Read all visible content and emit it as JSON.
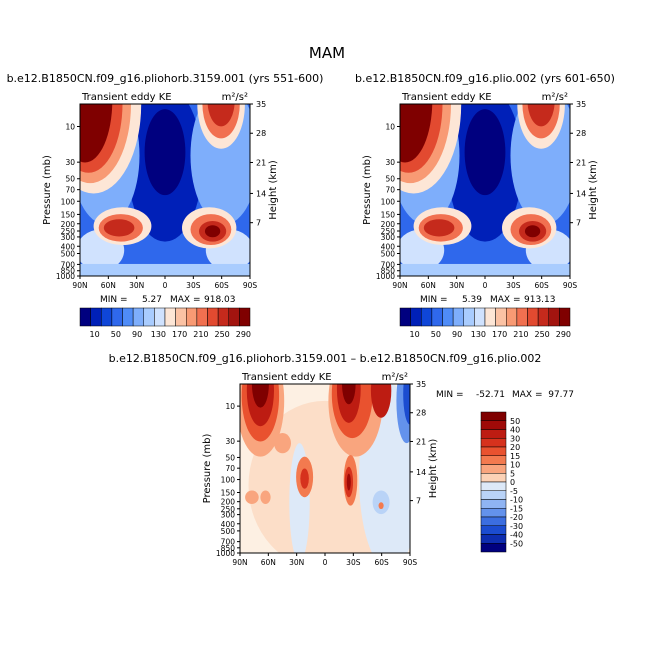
{
  "figure_title": "MAM",
  "panels": [
    {
      "title": "b.e12.B1850CN.f09_g16.pliohorb.3159.001 (yrs 551-600)",
      "var_label": "Transient eddy KE",
      "units": "m²/s²",
      "stats": {
        "min_label": "MIN =",
        "min": "5.27",
        "max_label": "MAX =",
        "max": "918.03"
      }
    },
    {
      "title": "b.e12.B1850CN.f09_g16.plio.002 (yrs 601-650)",
      "var_label": "Transient eddy KE",
      "units": "m²/s²",
      "stats": {
        "min_label": "MIN =",
        "min": "5.39",
        "max_label": "MAX =",
        "max": "913.13"
      }
    },
    {
      "title": "b.e12.B1850CN.f09_g16.pliohorb.3159.001 – b.e12.B1850CN.f09_g16.plio.002",
      "var_label": "Transient eddy KE",
      "units": "m²/s²",
      "stats": {
        "min_label": "MIN =",
        "min": "-52.71",
        "max_label": "MAX =",
        "max": "97.77"
      }
    }
  ],
  "chart_data": [
    {
      "type": "heatmap",
      "xlabel": "",
      "ylabel": "Pressure (mb)",
      "ylabel_right": "Height (km)",
      "x_ticks": [
        "90N",
        "60N",
        "30N",
        "0",
        "30S",
        "60S",
        "90S"
      ],
      "y_ticks": [
        "10",
        "30",
        "50",
        "70",
        "100",
        "150",
        "200",
        "250",
        "300",
        "400",
        "500",
        "700",
        "850",
        "1000"
      ],
      "y_right_ticks": [
        "35",
        "28",
        "21",
        "14",
        "7"
      ],
      "colorbar": {
        "levels": [
          "10",
          "50",
          "90",
          "130",
          "170",
          "210",
          "250",
          "290"
        ],
        "orientation": "horizontal"
      },
      "features": [
        {
          "lat": -80,
          "p": 10,
          "value": 600
        },
        {
          "lat": 60,
          "p": 10,
          "value": 300
        },
        {
          "lat": 45,
          "p": 250,
          "value": 300
        },
        {
          "lat": -45,
          "p": 300,
          "value": 300
        },
        {
          "lat": 0,
          "p": 40,
          "value": 5
        }
      ]
    },
    {
      "type": "heatmap",
      "xlabel": "",
      "ylabel": "Pressure (mb)",
      "ylabel_right": "Height (km)",
      "x_ticks": [
        "90N",
        "60N",
        "30N",
        "0",
        "30S",
        "60S",
        "90S"
      ],
      "y_ticks": [
        "10",
        "30",
        "50",
        "70",
        "100",
        "150",
        "200",
        "250",
        "300",
        "400",
        "500",
        "700",
        "850",
        "1000"
      ],
      "y_right_ticks": [
        "35",
        "28",
        "21",
        "14",
        "7"
      ],
      "colorbar": {
        "levels": [
          "10",
          "50",
          "90",
          "130",
          "170",
          "210",
          "250",
          "290"
        ],
        "orientation": "horizontal"
      },
      "features": [
        {
          "lat": -80,
          "p": 10,
          "value": 600
        },
        {
          "lat": 60,
          "p": 10,
          "value": 280
        },
        {
          "lat": 45,
          "p": 250,
          "value": 290
        },
        {
          "lat": -45,
          "p": 300,
          "value": 300
        },
        {
          "lat": 0,
          "p": 40,
          "value": 5
        }
      ]
    },
    {
      "type": "heatmap",
      "xlabel": "",
      "ylabel": "Pressure (mb)",
      "ylabel_right": "Height (km)",
      "x_ticks": [
        "90N",
        "60N",
        "30N",
        "0",
        "30S",
        "60S",
        "90S"
      ],
      "y_ticks": [
        "10",
        "30",
        "50",
        "70",
        "100",
        "150",
        "200",
        "250",
        "300",
        "400",
        "500",
        "700",
        "850",
        "1000"
      ],
      "y_right_ticks": [
        "35",
        "28",
        "21",
        "14",
        "7"
      ],
      "colorbar": {
        "levels": [
          "50",
          "40",
          "30",
          "20",
          "15",
          "10",
          "5",
          "0",
          "-5",
          "-10",
          "-15",
          "-20",
          "-30",
          "-40",
          "-50"
        ],
        "orientation": "vertical"
      },
      "features": [
        {
          "lat": 70,
          "p": 10,
          "value": 50
        },
        {
          "lat": -35,
          "p": 12,
          "value": 45
        },
        {
          "lat": -65,
          "p": 12,
          "value": 35
        },
        {
          "lat": -90,
          "p": 15,
          "value": -45
        },
        {
          "lat": 10,
          "p": 25,
          "value": 15
        },
        {
          "lat": 25,
          "p": 150,
          "value": 20
        },
        {
          "lat": -20,
          "p": 150,
          "value": 40
        },
        {
          "lat": -45,
          "p": 250,
          "value": -15
        }
      ]
    }
  ],
  "palettes": {
    "seq": [
      "#00007f",
      "#0020b8",
      "#0f46d8",
      "#2f68ec",
      "#4f8cf7",
      "#7eaefb",
      "#a9ccfe",
      "#d0e2fe",
      "#fde6d6",
      "#fbc2a4",
      "#f89a74",
      "#f17050",
      "#e24a30",
      "#c52a1c",
      "#a2140f",
      "#7f0000"
    ],
    "div": [
      "#7f0000",
      "#9f0a08",
      "#bd1c12",
      "#d6321d",
      "#e9522f",
      "#f37a4f",
      "#f9a57e",
      "#fcd2b6",
      "#fdf0e3",
      "#dde9f8",
      "#b9d3f7",
      "#8fb4f3",
      "#6392ec",
      "#3b6ee0",
      "#1b4cd0",
      "#0d2db0",
      "#00007f"
    ]
  }
}
